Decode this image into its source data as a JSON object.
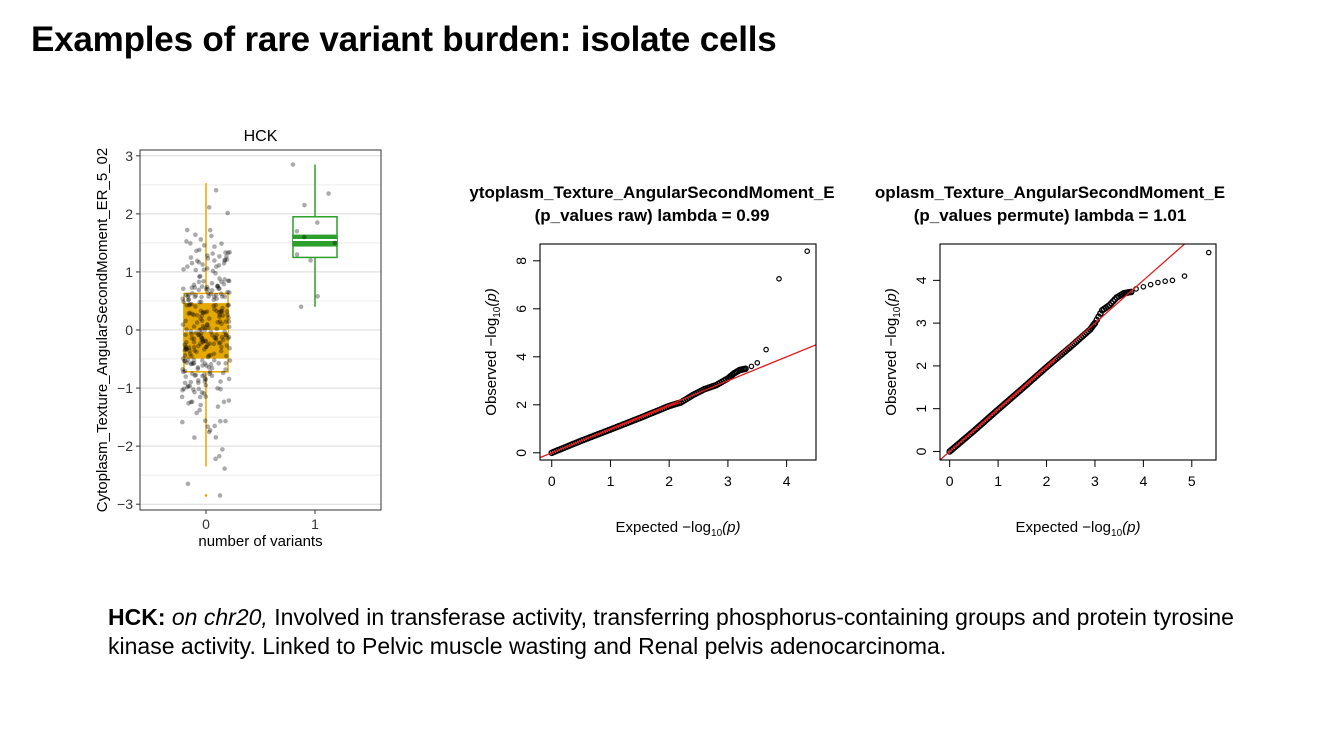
{
  "page": {
    "title": "Examples of rare variant burden: isolate cells"
  },
  "description": {
    "gene": "HCK:",
    "location": "on chr20,",
    "text": "Involved in transferase activity, transferring phosphorus-containing groups and protein tyrosine kinase activity. Linked to Pelvic muscle wasting and Renal pelvis adenocarcinoma."
  },
  "chart_data": [
    {
      "type": "box",
      "title": "HCK",
      "xlabel": "number of variants",
      "ylabel": "Cytoplasm_Texture_AngularSecondMoment_ER_5_02",
      "categories": [
        "0",
        "1"
      ],
      "ylim": [
        -3.1,
        3.1
      ],
      "yticks": [
        -3,
        -2,
        -1,
        0,
        1,
        2,
        3
      ],
      "colors": {
        "0": "#E5A800",
        "1": "#2CA02C"
      },
      "grid": true,
      "boxes": [
        {
          "category": "0",
          "whisker_low": -2.35,
          "q1": -0.72,
          "median": -0.02,
          "q3": 0.63,
          "whisker_high": 2.53,
          "outliers": [
            -2.85
          ],
          "notch_low": -0.48,
          "notch_high": 0.45
        },
        {
          "category": "1",
          "whisker_low": 0.4,
          "q1": 1.25,
          "median": 1.55,
          "q3": 1.95,
          "whisker_high": 2.85,
          "outliers": [],
          "notch_low": 1.45,
          "notch_high": 1.63
        }
      ],
      "points": {
        "0": {
          "count": 300,
          "range": [
            -2.85,
            2.5
          ]
        },
        "1": {
          "values": [
            2.85,
            2.35,
            2.15,
            1.85,
            1.7,
            1.6,
            1.5,
            1.3,
            1.2,
            0.58,
            0.4
          ]
        }
      }
    },
    {
      "type": "scatter",
      "title_line1": "ytoplasm_Texture_AngularSecondMoment_E",
      "title_line2": "(p_values raw) lambda = 0.99",
      "xlabel": "Expected",
      "ylabel": "Observed",
      "axis_expr": "−log",
      "axis_sub": "10",
      "axis_arg": "(p)",
      "xlim": [
        -0.2,
        4.5
      ],
      "ylim": [
        -0.3,
        8.7
      ],
      "xticks": [
        0,
        1,
        2,
        3,
        4
      ],
      "yticks": [
        0,
        2,
        4,
        6,
        8
      ],
      "reference_line": {
        "slope": 1,
        "intercept": 0,
        "color": "#E41A1C"
      },
      "curve": [
        [
          0,
          0
        ],
        [
          0.5,
          0.5
        ],
        [
          1,
          0.97
        ],
        [
          1.5,
          1.45
        ],
        [
          2,
          1.95
        ],
        [
          2.2,
          2.1
        ],
        [
          2.4,
          2.4
        ],
        [
          2.6,
          2.65
        ],
        [
          2.8,
          2.82
        ],
        [
          3.0,
          3.1
        ],
        [
          3.1,
          3.3
        ],
        [
          3.2,
          3.45
        ],
        [
          3.3,
          3.5
        ]
      ],
      "tail_points": [
        [
          3.4,
          3.6
        ],
        [
          3.5,
          3.75
        ],
        [
          3.65,
          4.3
        ],
        [
          3.87,
          7.25
        ],
        [
          4.35,
          8.4
        ]
      ],
      "point_color": "#000000"
    },
    {
      "type": "scatter",
      "title_line1": "oplasm_Texture_AngularSecondMoment_E",
      "title_line2": "(p_values permute) lambda = 1.01",
      "xlabel": "Expected",
      "ylabel": "Observed",
      "axis_expr": "−log",
      "axis_sub": "10",
      "axis_arg": "(p)",
      "xlim": [
        -0.2,
        5.5
      ],
      "ylim": [
        -0.2,
        4.85
      ],
      "xticks": [
        0,
        1,
        2,
        3,
        4,
        5
      ],
      "yticks": [
        0,
        1,
        2,
        3,
        4
      ],
      "reference_line": {
        "slope": 1,
        "intercept": 0,
        "color": "#E41A1C"
      },
      "curve": [
        [
          0,
          0
        ],
        [
          0.5,
          0.48
        ],
        [
          1,
          0.98
        ],
        [
          1.5,
          1.47
        ],
        [
          2,
          1.97
        ],
        [
          2.5,
          2.45
        ],
        [
          2.9,
          2.85
        ],
        [
          3.0,
          3.0
        ],
        [
          3.15,
          3.3
        ],
        [
          3.3,
          3.42
        ],
        [
          3.45,
          3.6
        ],
        [
          3.6,
          3.7
        ],
        [
          3.75,
          3.73
        ]
      ],
      "tail_points": [
        [
          3.85,
          3.8
        ],
        [
          4.0,
          3.85
        ],
        [
          4.15,
          3.9
        ],
        [
          4.3,
          3.95
        ],
        [
          4.45,
          3.98
        ],
        [
          4.6,
          4.0
        ],
        [
          4.85,
          4.1
        ],
        [
          5.35,
          4.65
        ]
      ],
      "point_color": "#000000"
    }
  ]
}
